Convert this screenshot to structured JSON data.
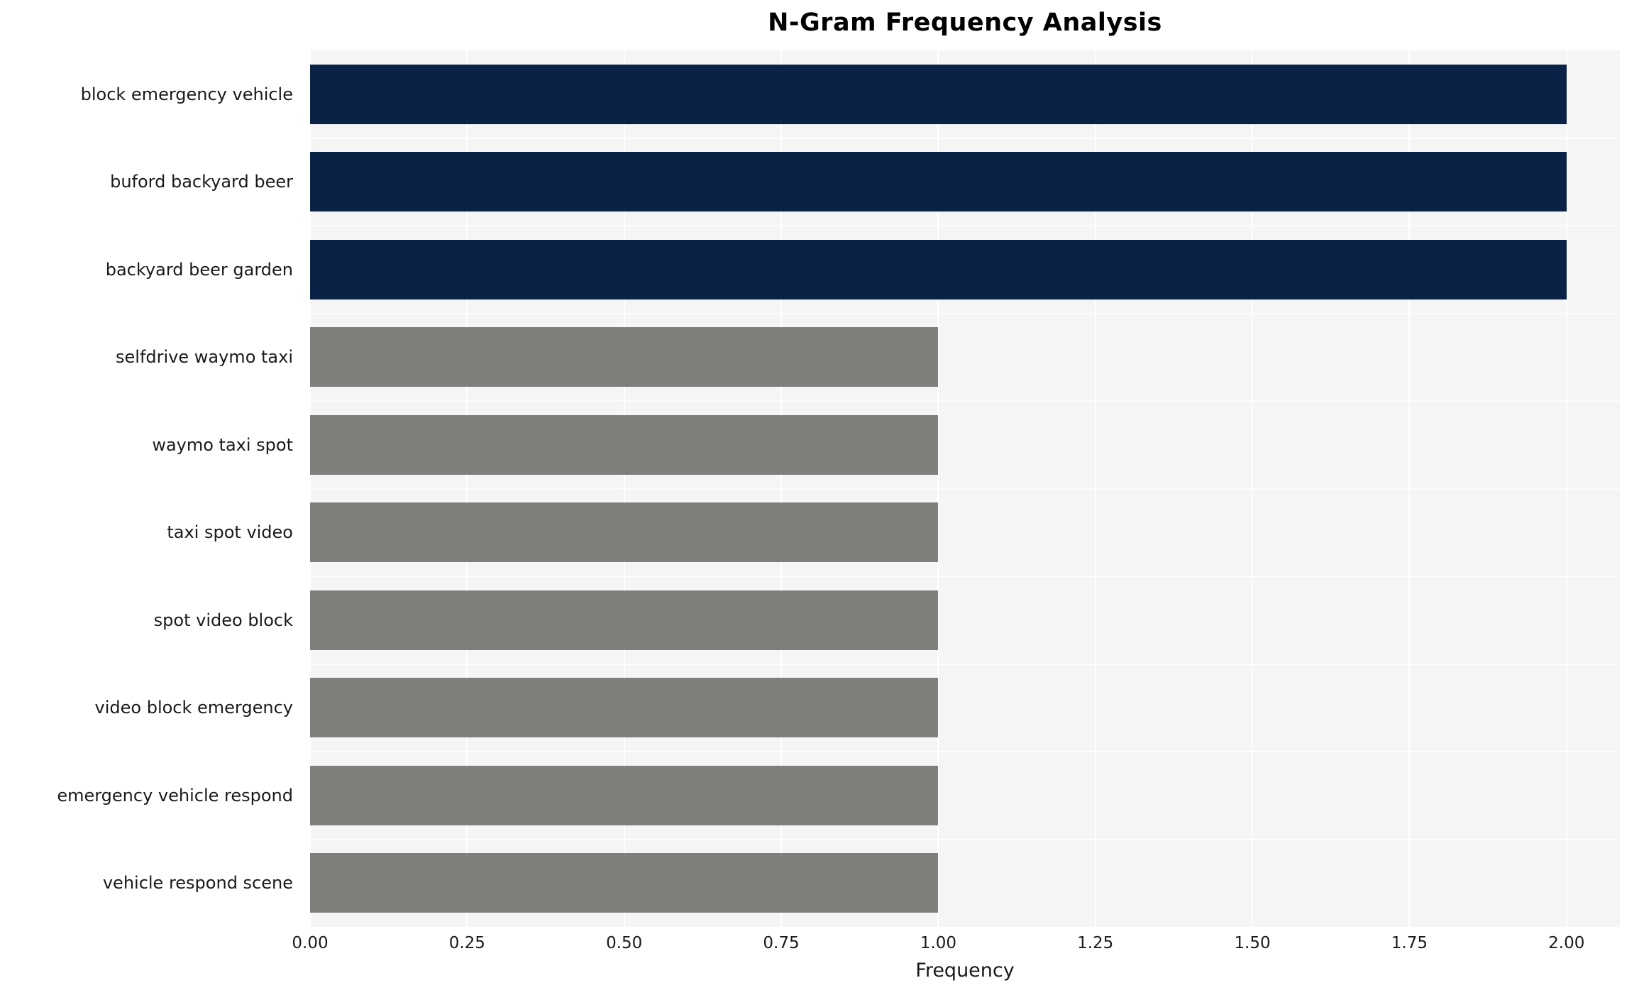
{
  "chart_data": {
    "type": "bar",
    "orientation": "horizontal",
    "title": "N-Gram Frequency Analysis",
    "xlabel": "Frequency",
    "ylabel": "",
    "categories": [
      "block emergency vehicle",
      "buford backyard beer",
      "backyard beer garden",
      "selfdrive waymo taxi",
      "waymo taxi spot",
      "taxi spot video",
      "spot video block",
      "video block emergency",
      "emergency vehicle respond",
      "vehicle respond scene"
    ],
    "values": [
      2,
      2,
      2,
      1,
      1,
      1,
      1,
      1,
      1,
      1
    ],
    "colors": [
      "#0b2247",
      "#0b2247",
      "#0b2247",
      "#7f7f7c",
      "#7f7f7c",
      "#7f7f7c",
      "#7f7f7c",
      "#7f7f7c",
      "#7f7f7c",
      "#7f7f7c"
    ],
    "xlim": [
      0,
      2.085
    ],
    "xticks": [
      0,
      0.25,
      0.5,
      0.75,
      1.0,
      1.25,
      1.5,
      1.75,
      2.0
    ],
    "xtick_labels": [
      "0.00",
      "0.25",
      "0.50",
      "0.75",
      "1.00",
      "1.25",
      "1.50",
      "1.75",
      "2.00"
    ],
    "grid": "white-gridlines",
    "legend": "none",
    "plot_bg": "#f5f5f6",
    "bar_color_count2": "#0b2247",
    "bar_color_count1": "#7f7f7c"
  }
}
